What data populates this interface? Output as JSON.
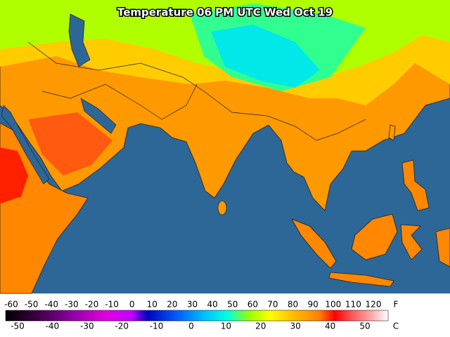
{
  "title": "Temperature 06 PM UTC Wed Oct 19",
  "legend": {
    "fahrenheit": {
      "unit": "F",
      "labels": [
        -60,
        -50,
        -40,
        -30,
        -20,
        -10,
        0,
        10,
        20,
        30,
        40,
        50,
        60,
        70,
        80,
        90,
        100,
        110,
        120
      ]
    },
    "celsius": {
      "unit": "C",
      "labels": [
        -50,
        -40,
        -30,
        -20,
        -10,
        0,
        10,
        20,
        30,
        40,
        50
      ]
    }
  }
}
